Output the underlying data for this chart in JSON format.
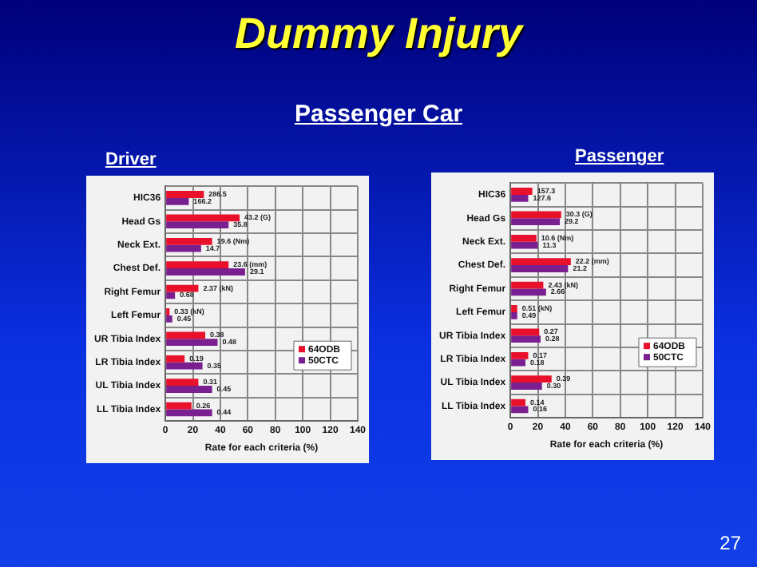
{
  "chart_data": [
    {
      "type": "other",
      "title": "Dummy Injury",
      "subtitle": "Passenger Car",
      "annotations": [
        "27"
      ]
    },
    {
      "type": "bar",
      "title": "Driver",
      "orientation": "horizontal",
      "categories": [
        "HIC36",
        "Head Gs",
        "Neck Ext.",
        "Chest Def.",
        "Right Femur",
        "Left Femur",
        "UR Tibia Index",
        "LR Tibia Index",
        "UL Tibia Index",
        "LL Tibia Index"
      ],
      "xlabel": "Rate for each criteria (%)",
      "xlim": [
        0,
        140
      ],
      "xticks": [
        0,
        20,
        40,
        60,
        80,
        100,
        120,
        140
      ],
      "grid": true,
      "legend": "bottom right",
      "series": [
        {
          "name": "64ODB",
          "color": "#e8102a",
          "values": [
            28,
            54,
            34,
            46,
            24,
            3,
            29,
            14,
            24,
            19
          ]
        },
        {
          "name": "50CTC",
          "color": "#7a1f8f",
          "values": [
            17,
            46,
            26,
            58,
            7,
            5,
            38,
            27,
            34,
            34
          ]
        }
      ],
      "annotations": [
        {
          "text": "286.5",
          "x": 28,
          "y": "HIC36"
        },
        {
          "text": "166.2",
          "x": 17,
          "y": "HIC36"
        },
        {
          "text": "43.2 (G)",
          "x": 54,
          "y": "Head Gs"
        },
        {
          "text": "35.8",
          "x": 46,
          "y": "Head Gs"
        },
        {
          "text": "19.6 (Nm)",
          "x": 34,
          "y": "Neck Ext."
        },
        {
          "text": "14.7",
          "x": 26,
          "y": "Neck Ext."
        },
        {
          "text": "23.6 (mm)",
          "x": 46,
          "y": "Chest Def."
        },
        {
          "text": "29.1",
          "x": 58,
          "y": "Chest Def."
        },
        {
          "text": "2.37 (kN)",
          "x": 24,
          "y": "Right Femur"
        },
        {
          "text": "0.68",
          "x": 7,
          "y": "Right Femur"
        },
        {
          "text": "0.33 (kN)",
          "x": 3,
          "y": "Left Femur"
        },
        {
          "text": "0.45",
          "x": 5,
          "y": "Left Femur"
        },
        {
          "text": "0.38",
          "x": 29,
          "y": "UR Tibia Index"
        },
        {
          "text": "0.48",
          "x": 38,
          "y": "UR Tibia Index"
        },
        {
          "text": "0.19",
          "x": 14,
          "y": "LR Tibia Index"
        },
        {
          "text": "0.35",
          "x": 27,
          "y": "LR Tibia Index"
        },
        {
          "text": "0.31",
          "x": 24,
          "y": "UL Tibia Index"
        },
        {
          "text": "0.45",
          "x": 34,
          "y": "UL Tibia Index"
        },
        {
          "text": "0.26",
          "x": 19,
          "y": "LL Tibia Index"
        },
        {
          "text": "0.44",
          "x": 34,
          "y": "LL Tibia Index"
        }
      ]
    },
    {
      "type": "bar",
      "title": "Passenger",
      "orientation": "horizontal",
      "categories": [
        "HIC36",
        "Head Gs",
        "Neck Ext.",
        "Chest Def.",
        "Right Femur",
        "Left Femur",
        "UR Tibia Index",
        "LR Tibia Index",
        "UL Tibia Index",
        "LL Tibia Index"
      ],
      "xlabel": "Rate for each criteria (%)",
      "xlim": [
        0,
        140
      ],
      "xticks": [
        0,
        20,
        40,
        60,
        80,
        100,
        120,
        140
      ],
      "grid": true,
      "legend": "bottom right",
      "series": [
        {
          "name": "64ODB",
          "color": "#e8102a",
          "values": [
            16,
            37,
            19,
            44,
            24,
            5,
            21,
            13,
            30,
            11
          ]
        },
        {
          "name": "50CTC",
          "color": "#7a1f8f",
          "values": [
            13,
            36,
            20,
            42,
            26,
            5,
            22,
            11,
            23,
            13
          ]
        }
      ],
      "annotations": [
        {
          "text": "157.3",
          "x": 16,
          "y": "HIC36"
        },
        {
          "text": "127.6",
          "x": 13,
          "y": "HIC36"
        },
        {
          "text": "30.3 (G)",
          "x": 37,
          "y": "Head Gs"
        },
        {
          "text": "29.2",
          "x": 36,
          "y": "Head Gs"
        },
        {
          "text": "10.6 (Nm)",
          "x": 19,
          "y": "Neck Ext."
        },
        {
          "text": "11.3",
          "x": 20,
          "y": "Neck Ext."
        },
        {
          "text": "22.2 (mm)",
          "x": 44,
          "y": "Chest Def."
        },
        {
          "text": "21.2",
          "x": 42,
          "y": "Chest Def."
        },
        {
          "text": "2.43 (kN)",
          "x": 24,
          "y": "Right Femur"
        },
        {
          "text": "2.66",
          "x": 26,
          "y": "Right Femur"
        },
        {
          "text": "0.51 (kN)",
          "x": 5,
          "y": "Left Femur"
        },
        {
          "text": "0.49",
          "x": 5,
          "y": "Left Femur"
        },
        {
          "text": "0.27",
          "x": 21,
          "y": "UR Tibia Index"
        },
        {
          "text": "0.28",
          "x": 22,
          "y": "UR Tibia Index"
        },
        {
          "text": "0.17",
          "x": 13,
          "y": "LR Tibia Index"
        },
        {
          "text": "0.18",
          "x": 11,
          "y": "LR Tibia Index"
        },
        {
          "text": "0.39",
          "x": 30,
          "y": "UL Tibia Index"
        },
        {
          "text": "0.30",
          "x": 23,
          "y": "UL Tibia Index"
        },
        {
          "text": "0.14",
          "x": 11,
          "y": "LL Tibia Index"
        },
        {
          "text": "0.16",
          "x": 13,
          "y": "LL Tibia Index"
        }
      ]
    }
  ]
}
